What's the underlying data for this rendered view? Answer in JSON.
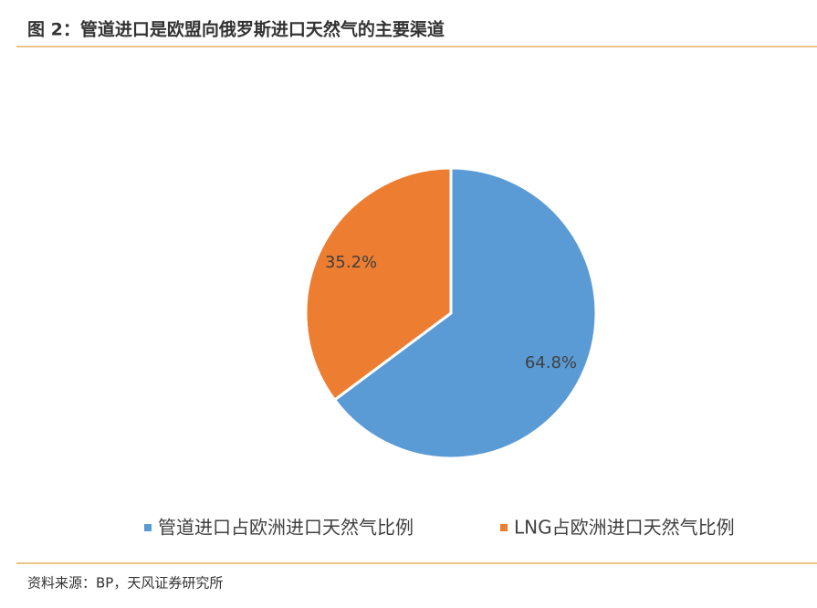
{
  "chart_data": {
    "type": "pie",
    "title": "图 2：管道进口是欧盟向俄罗斯进口天然气的主要渠道",
    "categories": [
      "管道进口占欧洲进口天然气比例",
      "LNG占欧洲进口天然气比例"
    ],
    "values": [
      64.8,
      35.2
    ],
    "value_labels": [
      "64.8%",
      "35.2%"
    ],
    "colors": [
      "#5b9bd5",
      "#ed7d31"
    ],
    "legend": "bottom",
    "source": "资料来源：BP，天风证券研究所"
  }
}
